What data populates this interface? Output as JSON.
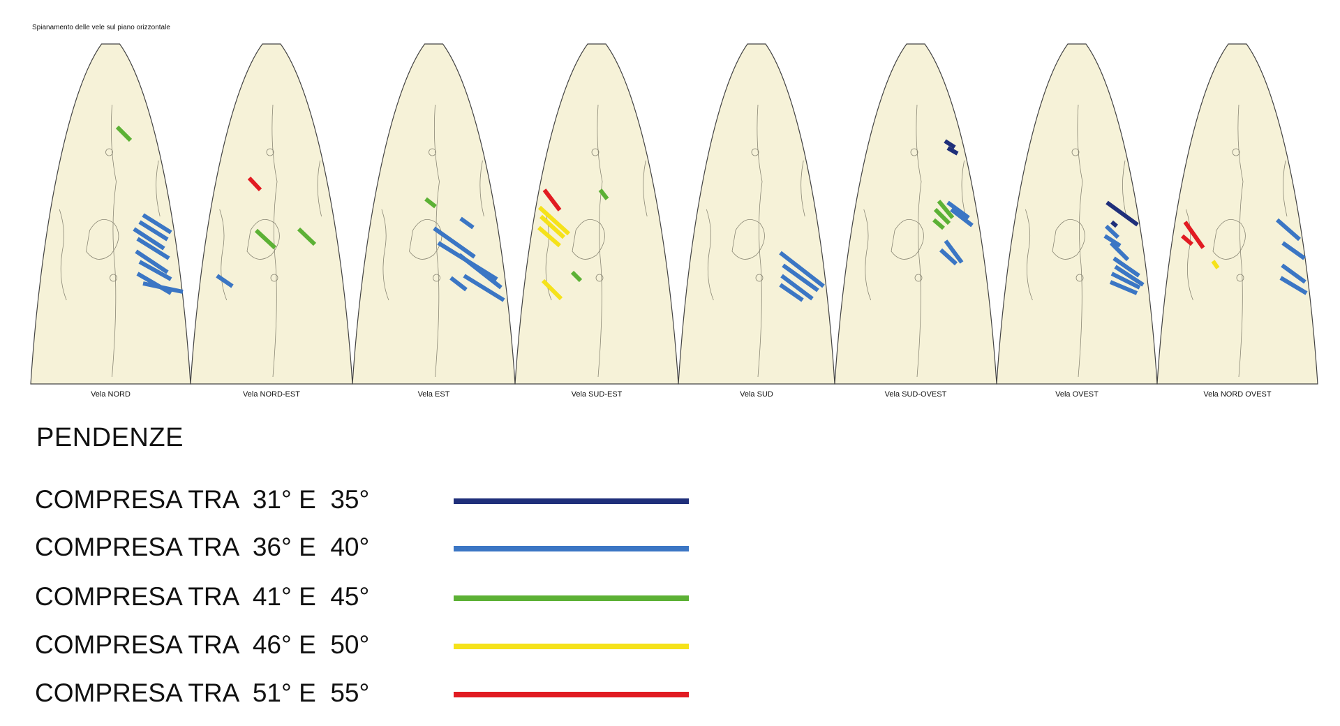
{
  "title": "Spianamento delle vele sul piano orizzontale",
  "sails": [
    {
      "label": "Vela  NORD"
    },
    {
      "label": "Vela  NORD-EST"
    },
    {
      "label": "Vela EST"
    },
    {
      "label": "Vela SUD-EST"
    },
    {
      "label": "Vela SUD"
    },
    {
      "label": "Vela SUD-OVEST"
    },
    {
      "label": "Vela OVEST"
    },
    {
      "label": "Vela NORD OVEST"
    }
  ],
  "legend": {
    "title": "PENDENZE",
    "items": [
      {
        "label": "COMPRESA TRA  31° E  35°",
        "color": "#1f2f7a"
      },
      {
        "label": "COMPRESA TRA  36° E  40°",
        "color": "#3b76c4"
      },
      {
        "label": "COMPRESA TRA  41° E  45°",
        "color": "#5cb135"
      },
      {
        "label": "COMPRESA TRA  46° E  50°",
        "color": "#f5e21a"
      },
      {
        "label": "COMPRESA TRA  51° E  55°",
        "color": "#e11b22"
      }
    ]
  },
  "colors": {
    "sail_fill": "#f6f2d8",
    "sail_stroke": "#444444"
  }
}
